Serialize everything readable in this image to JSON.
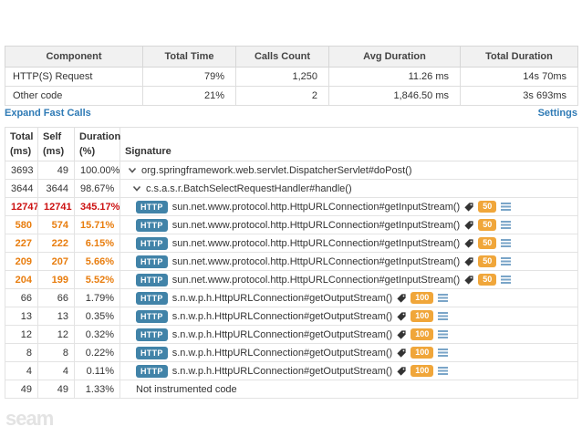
{
  "summary_table": {
    "columns": [
      "Component",
      "Total Time",
      "Calls Count",
      "Avg Duration",
      "Total Duration"
    ],
    "rows": [
      {
        "component": "HTTP(S) Request",
        "total_time": "79%",
        "calls_count": "1,250",
        "avg_duration": "11.26 ms",
        "total_duration": "14s 70ms"
      },
      {
        "component": "Other code",
        "total_time": "21%",
        "calls_count": "2",
        "avg_duration": "1,846.50 ms",
        "total_duration": "3s 693ms"
      }
    ]
  },
  "toolbar": {
    "expand_fast_calls_label": "Expand Fast Calls",
    "settings_label": "Settings"
  },
  "call_tree": {
    "columns": [
      {
        "line1": "Total",
        "line2": "(ms)"
      },
      {
        "line1": "Self",
        "line2": "(ms)"
      },
      {
        "line1": "Duration",
        "line2": "(%)"
      },
      {
        "line1": "Signature",
        "line2": ""
      }
    ],
    "http_badge_label": "HTTP",
    "rows": [
      {
        "total": "3693",
        "self": "49",
        "duration": "100.00%",
        "kind": "expand",
        "severity": "normal",
        "signature": "org.springframework.web.servlet.DispatcherServlet#doPost()",
        "count_badge": null,
        "indent": 0
      },
      {
        "total": "3644",
        "self": "3644",
        "duration": "98.67%",
        "kind": "expand",
        "severity": "normal",
        "signature": "c.s.a.s.r.BatchSelectRequestHandler#handle()",
        "count_badge": null,
        "indent": 1
      },
      {
        "total": "12747",
        "self": "12741",
        "duration": "345.17%",
        "kind": "http",
        "severity": "critical",
        "signature": "sun.net.www.protocol.http.HttpURLConnection#getInputStream()",
        "count_badge": "50",
        "indent": 2
      },
      {
        "total": "580",
        "self": "574",
        "duration": "15.71%",
        "kind": "http",
        "severity": "warning",
        "signature": "sun.net.www.protocol.http.HttpURLConnection#getInputStream()",
        "count_badge": "50",
        "indent": 2
      },
      {
        "total": "227",
        "self": "222",
        "duration": "6.15%",
        "kind": "http",
        "severity": "warning",
        "signature": "sun.net.www.protocol.http.HttpURLConnection#getInputStream()",
        "count_badge": "50",
        "indent": 2
      },
      {
        "total": "209",
        "self": "207",
        "duration": "5.66%",
        "kind": "http",
        "severity": "warning",
        "signature": "sun.net.www.protocol.http.HttpURLConnection#getInputStream()",
        "count_badge": "50",
        "indent": 2
      },
      {
        "total": "204",
        "self": "199",
        "duration": "5.52%",
        "kind": "http",
        "severity": "warning",
        "signature": "sun.net.www.protocol.http.HttpURLConnection#getInputStream()",
        "count_badge": "50",
        "indent": 2
      },
      {
        "total": "66",
        "self": "66",
        "duration": "1.79%",
        "kind": "http",
        "severity": "normal",
        "signature": "s.n.w.p.h.HttpURLConnection#getOutputStream()",
        "count_badge": "100",
        "indent": 2
      },
      {
        "total": "13",
        "self": "13",
        "duration": "0.35%",
        "kind": "http",
        "severity": "normal",
        "signature": "s.n.w.p.h.HttpURLConnection#getOutputStream()",
        "count_badge": "100",
        "indent": 2
      },
      {
        "total": "12",
        "self": "12",
        "duration": "0.32%",
        "kind": "http",
        "severity": "normal",
        "signature": "s.n.w.p.h.HttpURLConnection#getOutputStream()",
        "count_badge": "100",
        "indent": 2
      },
      {
        "total": "8",
        "self": "8",
        "duration": "0.22%",
        "kind": "http",
        "severity": "normal",
        "signature": "s.n.w.p.h.HttpURLConnection#getOutputStream()",
        "count_badge": "100",
        "indent": 2
      },
      {
        "total": "4",
        "self": "4",
        "duration": "0.11%",
        "kind": "http",
        "severity": "normal",
        "signature": "s.n.w.p.h.HttpURLConnection#getOutputStream()",
        "count_badge": "100",
        "indent": 2
      },
      {
        "total": "49",
        "self": "49",
        "duration": "1.33%",
        "kind": "plain",
        "severity": "normal",
        "signature": "Not instrumented code",
        "count_badge": null,
        "indent": 2
      }
    ]
  },
  "icons": {
    "expand": "chevron-down-icon",
    "tag": "tag-icon",
    "trace": "trace-lines-icon"
  },
  "watermark": "seam",
  "colors": {
    "accent_link": "#2e7ab5",
    "http_badge": "#4183a8",
    "count_badge": "#f0a63a",
    "critical": "#cc1111",
    "warning": "#e87d0e",
    "border": "#dddddd",
    "header_bg": "#f1f1f1",
    "trace_icon": "#7aa5c8",
    "tag_icon": "#333333",
    "watermark": "#e3e3e3"
  }
}
